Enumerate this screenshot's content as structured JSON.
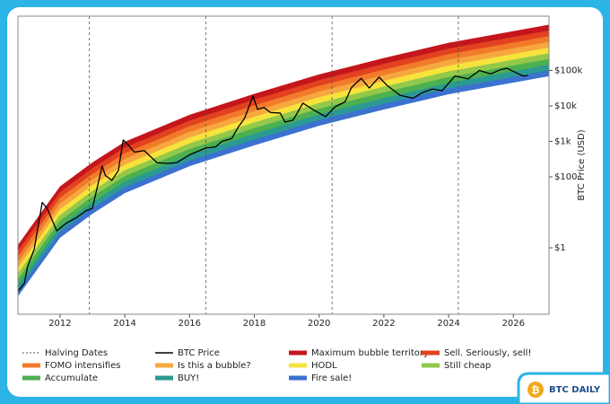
{
  "chart_data": {
    "type": "line",
    "log_y": true,
    "y_label": "BTC Price (USD)",
    "logo_text": "BTC DAILY",
    "legend": "bottom",
    "xlim": [
      2010.7,
      2027.1
    ],
    "ylim": [
      0.0134,
      3400000
    ],
    "xticks": [
      2012,
      2014,
      2016,
      2018,
      2020,
      2022,
      2024,
      2026
    ],
    "yticks": [
      {
        "value": 1,
        "label": "$1"
      },
      {
        "value": 100,
        "label": "$100"
      },
      {
        "value": 1000,
        "label": "$1k"
      },
      {
        "value": 10000,
        "label": "$10k"
      },
      {
        "value": 100000,
        "label": "$100k"
      }
    ],
    "halvings": {
      "name": "Halving Dates",
      "color": "#555555",
      "x": [
        2012.9,
        2016.5,
        2020.4,
        2024.3
      ]
    },
    "price": {
      "name": "BTC Price",
      "color": "#000000",
      "x": [
        2010.7,
        2010.9,
        2011.0,
        2011.2,
        2011.45,
        2011.6,
        2011.9,
        2012.2,
        2012.5,
        2012.8,
        2013.0,
        2013.3,
        2013.4,
        2013.6,
        2013.8,
        2013.95,
        2014.1,
        2014.3,
        2014.6,
        2015.0,
        2015.3,
        2015.6,
        2016.0,
        2016.5,
        2016.8,
        2017.0,
        2017.3,
        2017.5,
        2017.7,
        2017.96,
        2018.1,
        2018.3,
        2018.5,
        2018.8,
        2018.95,
        2019.2,
        2019.5,
        2019.8,
        2020.2,
        2020.5,
        2020.8,
        2021.0,
        2021.3,
        2021.55,
        2021.85,
        2022.1,
        2022.5,
        2022.9,
        2023.2,
        2023.5,
        2023.8,
        2024.2,
        2024.6,
        2024.95,
        2025.3,
        2025.6,
        2025.8,
        2026.1,
        2026.3,
        2026.45
      ],
      "values": [
        0.06,
        0.1,
        0.3,
        0.9,
        19,
        13,
        3,
        5,
        7,
        11,
        13,
        200,
        110,
        80,
        150,
        1100,
        800,
        500,
        550,
        250,
        240,
        250,
        420,
        650,
        700,
        1000,
        1200,
        2500,
        4500,
        19000,
        8000,
        9000,
        6500,
        6300,
        3500,
        4000,
        12000,
        8000,
        5000,
        9500,
        13000,
        33000,
        60000,
        32000,
        65000,
        38000,
        20000,
        16500,
        24000,
        30000,
        27000,
        70000,
        58000,
        100000,
        80000,
        105000,
        115000,
        85000,
        70000,
        72000
      ]
    },
    "bands": {
      "x": [
        2010.7,
        2011.2,
        2012,
        2013,
        2014,
        2016,
        2018,
        2020,
        2022,
        2024,
        2027.1
      ],
      "lower": [
        0.0427,
        0.186,
        1.91,
        9.12,
        34.7,
        200,
        776,
        2750,
        7940,
        21400,
        69200
      ],
      "series": [
        {
          "name": "Maximum bubble territory",
          "color": "#c4161c",
          "values": [
            1.2,
            5.25,
            53.9,
            257,
            979,
            5640,
            21900,
            77600,
            224000,
            603000,
            1950000
          ]
        },
        {
          "name": "Sell. Seriously, sell!",
          "color": "#e2421f",
          "values": [
            0.828,
            3.61,
            37.1,
            177,
            673,
            3880,
            15100,
            53400,
            154000,
            415000,
            1340000
          ]
        },
        {
          "name": "FOMO intensifies",
          "color": "#f27b2b",
          "values": [
            0.572,
            2.49,
            25.6,
            122,
            465,
            2680,
            10400,
            36900,
            106000,
            287000,
            927000
          ]
        },
        {
          "name": "Is this a bubble?",
          "color": "#f6a83f",
          "values": [
            0.395,
            1.72,
            17.7,
            84.5,
            321,
            1850,
            7190,
            25500,
            73500,
            198000,
            641000
          ]
        },
        {
          "name": "HODL",
          "color": "#f6e43d",
          "values": [
            0.273,
            1.19,
            12.2,
            58.3,
            222,
            1280,
            4960,
            17600,
            50700,
            137000,
            442000
          ]
        },
        {
          "name": "Still cheap",
          "color": "#93c84b",
          "values": [
            0.188,
            0.82,
            8.42,
            40.2,
            153,
            882,
            3420,
            12100,
            35000,
            94400,
            305000
          ]
        },
        {
          "name": "Accumulate",
          "color": "#4cb050",
          "values": [
            0.13,
            0.565,
            5.81,
            27.7,
            105,
            608,
            2360,
            8360,
            24100,
            65100,
            210000
          ]
        },
        {
          "name": "BUY!",
          "color": "#2b9a92",
          "values": [
            0.0897,
            0.391,
            4.01,
            19.2,
            72.9,
            420,
            1630,
            5780,
            16700,
            44900,
            145000
          ]
        },
        {
          "name": "Fire sale!",
          "color": "#3b72cf",
          "values": [
            0.0619,
            0.27,
            2.77,
            13.2,
            50.3,
            290,
            1120,
            3980,
            11500,
            31000,
            100000
          ]
        }
      ]
    }
  }
}
